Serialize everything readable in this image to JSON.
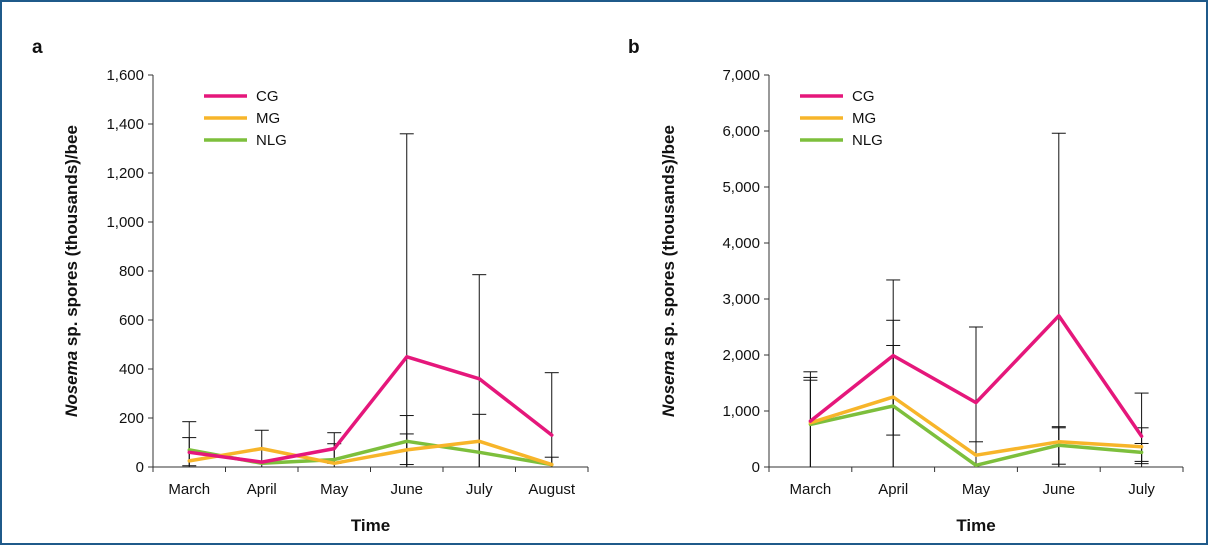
{
  "colors": {
    "CG": "#e5177b",
    "MG": "#f7b52a",
    "NLG": "#7dbf3c",
    "axis": "#333333",
    "error": "#111111",
    "frame": "#1f5a8a"
  },
  "chart_data": [
    {
      "type": "line",
      "panel": "a",
      "title": "",
      "xlabel": "Time",
      "ylabel_italic": "Nosema",
      "ylabel_rest": " sp. spores (thousands)/bee",
      "categories": [
        "March",
        "April",
        "May",
        "June",
        "July",
        "August"
      ],
      "ylim": [
        0,
        1600
      ],
      "yticks": [
        0,
        200,
        400,
        600,
        800,
        1000,
        1200,
        1400,
        1600
      ],
      "ytick_labels": [
        "0",
        "200",
        "400",
        "600",
        "800",
        "1,000",
        "1,200",
        "1,400",
        "1,600"
      ],
      "grid": false,
      "legend": "top-left",
      "series": [
        {
          "name": "CG",
          "values": [
            60,
            20,
            75,
            450,
            360,
            130
          ],
          "error_upper": [
            185,
            150,
            140,
            1360,
            785,
            385
          ],
          "error_lower": [
            5,
            0,
            15,
            10,
            0,
            0
          ]
        },
        {
          "name": "MG",
          "values": [
            25,
            75,
            15,
            70,
            105,
            10
          ],
          "error_upper": [
            120,
            0,
            95,
            210,
            215,
            40
          ],
          "error_lower": [
            0,
            0,
            0,
            0,
            0,
            0
          ]
        },
        {
          "name": "NLG",
          "values": [
            70,
            15,
            30,
            105,
            60,
            10
          ],
          "error_upper": [
            0,
            0,
            0,
            135,
            0,
            0
          ],
          "error_lower": [
            0,
            0,
            0,
            0,
            0,
            0
          ]
        }
      ]
    },
    {
      "type": "line",
      "panel": "b",
      "title": "",
      "xlabel": "Time",
      "ylabel_italic": "Nosema",
      "ylabel_rest": " sp. spores (thousands)/bee",
      "categories": [
        "March",
        "April",
        "May",
        "June",
        "July"
      ],
      "ylim": [
        0,
        7000
      ],
      "yticks": [
        0,
        1000,
        2000,
        3000,
        4000,
        5000,
        6000,
        7000
      ],
      "ytick_labels": [
        "0",
        "1,000",
        "2,000",
        "3,000",
        "4,000",
        "5,000",
        "6,000",
        "7,000"
      ],
      "grid": false,
      "legend": "top-left",
      "series": [
        {
          "name": "CG",
          "values": [
            820,
            1990,
            1150,
            2700,
            550
          ],
          "error_upper": [
            1700,
            3340,
            2500,
            5960,
            1320
          ],
          "error_lower": [
            0,
            570,
            0,
            0,
            0
          ]
        },
        {
          "name": "MG",
          "values": [
            790,
            1250,
            210,
            450,
            360
          ],
          "error_upper": [
            1600,
            2620,
            450,
            720,
            700
          ],
          "error_lower": [
            0,
            0,
            0,
            50,
            100
          ]
        },
        {
          "name": "NLG",
          "values": [
            760,
            1090,
            30,
            390,
            260
          ],
          "error_upper": [
            1550,
            2170,
            0,
            700,
            420
          ],
          "error_lower": [
            0,
            0,
            0,
            0,
            60
          ]
        }
      ]
    }
  ]
}
